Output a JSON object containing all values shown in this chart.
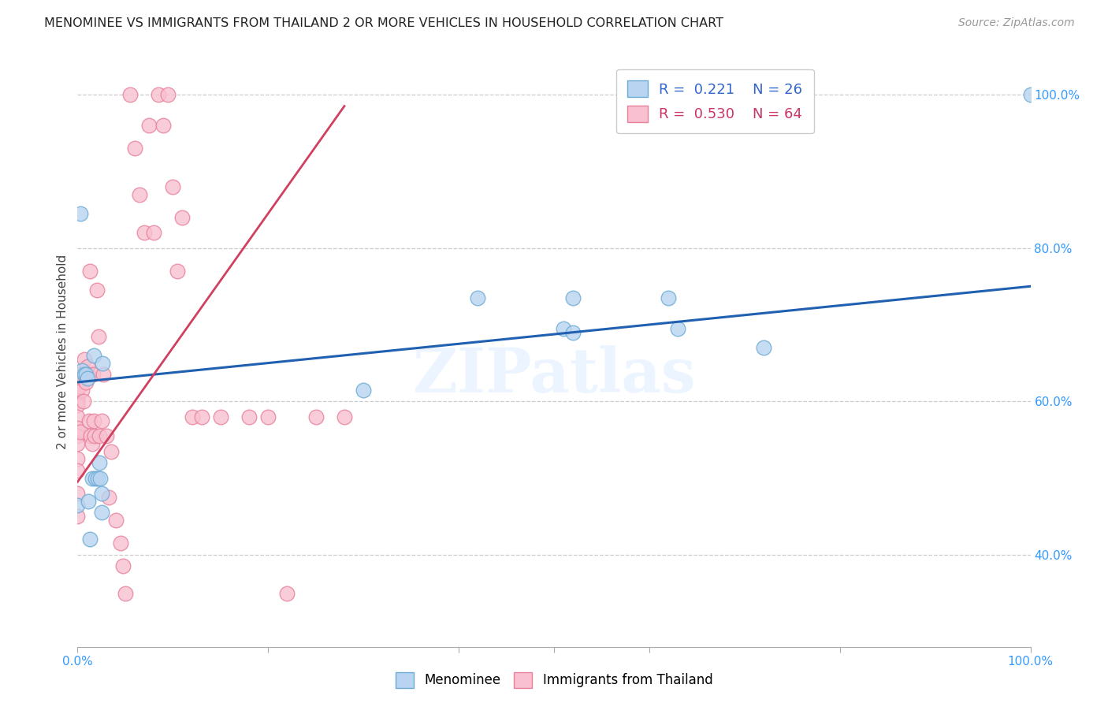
{
  "title": "MENOMINEE VS IMMIGRANTS FROM THAILAND 2 OR MORE VEHICLES IN HOUSEHOLD CORRELATION CHART",
  "source": "Source: ZipAtlas.com",
  "ylabel": "2 or more Vehicles in Household",
  "watermark": "ZIPatlas",
  "legend1_R": "0.221",
  "legend1_N": "26",
  "legend2_R": "0.530",
  "legend2_N": "64",
  "blue_scatter_color": "#b8d4f0",
  "blue_edge_color": "#6aaad4",
  "pink_scatter_color": "#f8c0d0",
  "pink_edge_color": "#e8809a",
  "line_blue_color": "#2060b0",
  "line_pink_color": "#d04060",
  "xlim": [
    0.0,
    1.0
  ],
  "ylim": [
    0.28,
    1.05
  ],
  "yticks": [
    0.4,
    0.6,
    0.8,
    1.0
  ],
  "ytick_labels": [
    "40.0%",
    "60.0%",
    "80.0%",
    "100.0%"
  ],
  "menominee_x": [
    0.0,
    0.003,
    0.005,
    0.007,
    0.009,
    0.01,
    0.011,
    0.013,
    0.015,
    0.017,
    0.019,
    0.021,
    0.023,
    0.024,
    0.025,
    0.025,
    0.026,
    0.3,
    0.42,
    0.51,
    0.52,
    0.52,
    0.62,
    0.63,
    0.72,
    1.0
  ],
  "menominee_y": [
    0.465,
    0.845,
    0.64,
    0.635,
    0.635,
    0.63,
    0.47,
    0.42,
    0.5,
    0.66,
    0.5,
    0.5,
    0.52,
    0.5,
    0.48,
    0.455,
    0.65,
    0.615,
    0.735,
    0.695,
    0.735,
    0.69,
    0.735,
    0.695,
    0.67,
    1.0
  ],
  "thailand_x": [
    0.0,
    0.0,
    0.0,
    0.0,
    0.0,
    0.0,
    0.0,
    0.0,
    0.0,
    0.0,
    0.0,
    0.0,
    0.0,
    0.0,
    0.0,
    0.002,
    0.003,
    0.004,
    0.005,
    0.006,
    0.007,
    0.008,
    0.009,
    0.01,
    0.011,
    0.012,
    0.013,
    0.014,
    0.015,
    0.016,
    0.017,
    0.018,
    0.02,
    0.022,
    0.023,
    0.025,
    0.027,
    0.03,
    0.033,
    0.035,
    0.04,
    0.045,
    0.048,
    0.05,
    0.055,
    0.06,
    0.065,
    0.07,
    0.075,
    0.08,
    0.085,
    0.09,
    0.095,
    0.1,
    0.105,
    0.11,
    0.12,
    0.13,
    0.15,
    0.18,
    0.2,
    0.22,
    0.25,
    0.28
  ],
  "thailand_y": [
    0.635,
    0.635,
    0.62,
    0.615,
    0.605,
    0.6,
    0.595,
    0.58,
    0.565,
    0.555,
    0.545,
    0.525,
    0.51,
    0.48,
    0.45,
    0.62,
    0.56,
    0.63,
    0.615,
    0.6,
    0.655,
    0.635,
    0.625,
    0.645,
    0.635,
    0.575,
    0.77,
    0.555,
    0.545,
    0.635,
    0.575,
    0.555,
    0.745,
    0.685,
    0.555,
    0.575,
    0.635,
    0.555,
    0.475,
    0.535,
    0.445,
    0.415,
    0.385,
    0.35,
    1.0,
    0.93,
    0.87,
    0.82,
    0.96,
    0.82,
    1.0,
    0.96,
    1.0,
    0.88,
    0.77,
    0.84,
    0.58,
    0.58,
    0.58,
    0.58,
    0.58,
    0.35,
    0.58,
    0.58
  ],
  "blue_line_x": [
    0.0,
    1.0
  ],
  "blue_line_y": [
    0.625,
    0.75
  ],
  "pink_line_x": [
    0.0,
    0.28
  ],
  "pink_line_y": [
    0.495,
    0.985
  ]
}
